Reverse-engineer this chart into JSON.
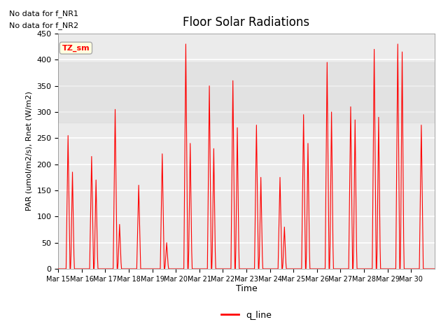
{
  "title": "Floor Solar Radiations",
  "ylabel": "PAR (umol/m2/s), Rnet (W/m2)",
  "xlabel": "Time",
  "ylim": [
    0,
    450
  ],
  "yticks": [
    0,
    50,
    100,
    150,
    200,
    250,
    300,
    350,
    400,
    450
  ],
  "x_tick_labels": [
    "Mar 15",
    "Mar 16",
    "Mar 17",
    "Mar 18",
    "Mar 19",
    "Mar 20",
    "Mar 21",
    "Mar 22",
    "Mar 23",
    "Mar 24",
    "Mar 25",
    "Mar 26",
    "Mar 27",
    "Mar 28",
    "Mar 29",
    "Mar 30"
  ],
  "no_data_text1": "No data for f_NR1",
  "no_data_text2": "No data for f_NR2",
  "tz_label": "TZ_sm",
  "line_color": "#FF0000",
  "line_label": "q_line",
  "plot_bg": "#EBEBEB",
  "grid_color": "white",
  "daily_peaks": [
    255,
    215,
    305,
    160,
    220,
    430,
    350,
    360,
    275,
    175,
    295,
    395,
    310,
    420,
    430,
    275
  ],
  "secondary_peaks": [
    185,
    170,
    85,
    0,
    50,
    240,
    230,
    270,
    175,
    80,
    240,
    300,
    285,
    290,
    415,
    0
  ],
  "shadeband_low": 280,
  "shadeband_high": 395
}
